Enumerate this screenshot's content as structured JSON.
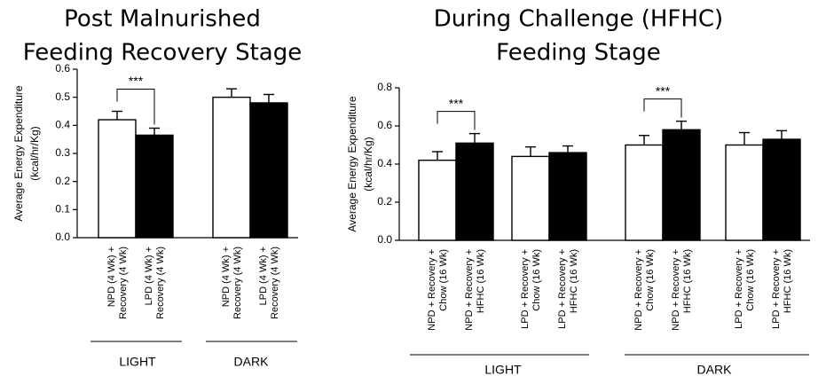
{
  "chart_data": [
    {
      "type": "bar",
      "title_lines": [
        "Post Malnurished",
        "Feeding Recovery Stage"
      ],
      "ylabel_lines": [
        "Average Energy Expenditure",
        "(kcal/hr/Kg)"
      ],
      "ylim": [
        0,
        0.6
      ],
      "yticks": [
        "0.0",
        "0.1",
        "0.2",
        "0.3",
        "0.4",
        "0.5",
        "0.6"
      ],
      "ytick_values": [
        0.0,
        0.1,
        0.2,
        0.3,
        0.4,
        0.5,
        0.6
      ],
      "bars": [
        {
          "label_lines": [
            "NPD (4 Wk) +",
            "Recovery (4 Wk)"
          ],
          "value": 0.42,
          "error": 0.03,
          "color": "#ffffff"
        },
        {
          "label_lines": [
            "LPD (4 Wk) +",
            "Recovery (4 Wk)"
          ],
          "value": 0.365,
          "error": 0.025,
          "color": "#000000"
        },
        {
          "label_lines": [
            "NPD (4 Wk) +",
            "Recovery (4 Wk)"
          ],
          "value": 0.5,
          "error": 0.03,
          "color": "#ffffff"
        },
        {
          "label_lines": [
            "LPD (4 Wk) +",
            "Recovery (4 Wk)"
          ],
          "value": 0.48,
          "error": 0.03,
          "color": "#000000"
        }
      ],
      "groups": [
        "LIGHT",
        "DARK"
      ],
      "significance": [
        {
          "text": "***",
          "between": [
            0,
            1
          ]
        }
      ]
    },
    {
      "type": "bar",
      "title_lines": [
        "During Challenge (HFHC)",
        "Feeding Stage"
      ],
      "ylabel_lines": [
        "Average Energy Expenditure",
        "(kcal/hr/Kg)"
      ],
      "ylim": [
        0,
        0.8
      ],
      "yticks": [
        "0.0",
        "0.2",
        "0.4",
        "0.6",
        "0.8"
      ],
      "ytick_values": [
        0.0,
        0.2,
        0.4,
        0.6,
        0.8
      ],
      "bars": [
        {
          "label_lines": [
            "NPD + Recovery +",
            "Chow (16 Wk)"
          ],
          "value": 0.42,
          "error": 0.045,
          "color": "#ffffff"
        },
        {
          "label_lines": [
            "NPD + Recovery +",
            "HFHC (16 Wk)"
          ],
          "value": 0.51,
          "error": 0.05,
          "color": "#000000"
        },
        {
          "label_lines": [
            "LPD + Recovery +",
            "Chow (16 Wk)"
          ],
          "value": 0.44,
          "error": 0.05,
          "color": "#ffffff"
        },
        {
          "label_lines": [
            "LPD + Recovery +",
            "HFHC (16 Wk)"
          ],
          "value": 0.46,
          "error": 0.035,
          "color": "#000000"
        },
        {
          "label_lines": [
            "NPD + Recovery +",
            "Chow (16 Wk)"
          ],
          "value": 0.5,
          "error": 0.05,
          "color": "#ffffff"
        },
        {
          "label_lines": [
            "NPD + Recovery +",
            "HFHC (16 Wk)"
          ],
          "value": 0.58,
          "error": 0.045,
          "color": "#000000"
        },
        {
          "label_lines": [
            "LPD + Recovery +",
            "Chow (16 Wk)"
          ],
          "value": 0.5,
          "error": 0.065,
          "color": "#ffffff"
        },
        {
          "label_lines": [
            "LPD + Recovery +",
            "HFHC (16 Wk)"
          ],
          "value": 0.53,
          "error": 0.045,
          "color": "#000000"
        }
      ],
      "groups": [
        "LIGHT",
        "DARK"
      ],
      "significance": [
        {
          "text": "***",
          "between": [
            0,
            1
          ]
        },
        {
          "text": "***",
          "between": [
            4,
            5
          ]
        }
      ]
    }
  ]
}
